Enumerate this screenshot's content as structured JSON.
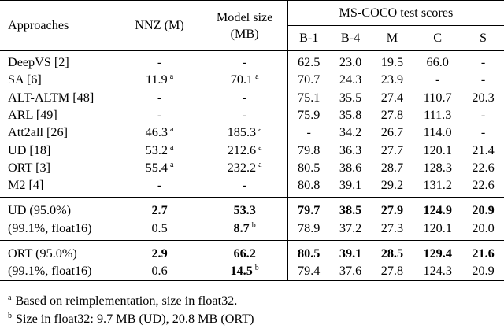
{
  "header": {
    "approaches": "Approaches",
    "nnz": "NNZ (M)",
    "model_size_line1": "Model size",
    "model_size_line2": "(MB)",
    "mscoco": "MS-COCO test scores",
    "metrics": [
      "B-1",
      "B-4",
      "M",
      "C",
      "S"
    ]
  },
  "rows": [
    {
      "name": "DeepVS [2]",
      "nnz": "-",
      "nnz_sup": "",
      "size": "-",
      "size_sup": "",
      "b1": "62.5",
      "b4": "23.0",
      "m": "19.5",
      "c": "66.0",
      "s": "-"
    },
    {
      "name": "SA [6]",
      "nnz": "11.9",
      "nnz_sup": "a",
      "size": "70.1",
      "size_sup": "a",
      "b1": "70.7",
      "b4": "24.3",
      "m": "23.9",
      "c": "-",
      "s": "-"
    },
    {
      "name": "ALT-ALTM [48]",
      "nnz": "-",
      "nnz_sup": "",
      "size": "-",
      "size_sup": "",
      "b1": "75.1",
      "b4": "35.5",
      "m": "27.4",
      "c": "110.7",
      "s": "20.3"
    },
    {
      "name": "ARL [49]",
      "nnz": "-",
      "nnz_sup": "",
      "size": "-",
      "size_sup": "",
      "b1": "75.9",
      "b4": "35.8",
      "m": "27.8",
      "c": "111.3",
      "s": "-"
    },
    {
      "name": "Att2all [26]",
      "nnz": "46.3",
      "nnz_sup": "a",
      "size": "185.3",
      "size_sup": "a",
      "b1": "-",
      "b4": "34.2",
      "m": "26.7",
      "c": "114.0",
      "s": "-"
    },
    {
      "name": "UD [18]",
      "nnz": "53.2",
      "nnz_sup": "a",
      "size": "212.6",
      "size_sup": "a",
      "b1": "79.8",
      "b4": "36.3",
      "m": "27.7",
      "c": "120.1",
      "s": "21.4"
    },
    {
      "name": "ORT [3]",
      "nnz": "55.4",
      "nnz_sup": "a",
      "size": "232.2",
      "size_sup": "a",
      "b1": "80.5",
      "b4": "38.6",
      "m": "28.7",
      "c": "128.3",
      "s": "22.6"
    },
    {
      "name": "M2 [4]",
      "nnz": "-",
      "nnz_sup": "",
      "size": "-",
      "size_sup": "",
      "b1": "80.8",
      "b4": "39.1",
      "m": "29.2",
      "c": "131.2",
      "s": "22.6"
    }
  ],
  "ud_group": [
    {
      "name": "UD (95.0%)",
      "nnz": "2.7",
      "size": "53.3",
      "size_sup": "",
      "b1": "79.7",
      "b4": "38.5",
      "m": "27.9",
      "c": "124.9",
      "s": "20.9",
      "bold": true
    },
    {
      "name": "(99.1%, float16)",
      "nnz": "0.5",
      "size": "8.7",
      "size_sup": "b",
      "b1": "78.9",
      "b4": "37.2",
      "m": "27.3",
      "c": "120.1",
      "s": "20.0",
      "bold": false
    }
  ],
  "ort_group": [
    {
      "name": "ORT (95.0%)",
      "nnz": "2.9",
      "size": "66.2",
      "size_sup": "",
      "b1": "80.5",
      "b4": "39.1",
      "m": "28.5",
      "c": "129.4",
      "s": "21.6",
      "bold": true
    },
    {
      "name": "(99.1%, float16)",
      "nnz": "0.6",
      "size": "14.5",
      "size_sup": "b",
      "b1": "79.4",
      "b4": "37.6",
      "m": "27.8",
      "c": "124.3",
      "s": "20.9",
      "bold": false
    }
  ],
  "notes": {
    "a_mark": "a",
    "a_text": "Based on reimplementation, size in float32.",
    "b_mark": "b",
    "b_text": "Size in float32: 9.7 MB (UD), 20.8 MB (ORT)"
  }
}
